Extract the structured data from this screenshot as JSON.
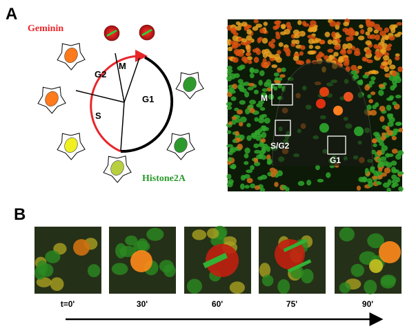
{
  "panel_a": {
    "label": "A",
    "cycle": {
      "geminin": "Geminin",
      "histone": "Histone2A",
      "phases": [
        "G2",
        "M",
        "S",
        "G1"
      ]
    },
    "micrograph_labels": [
      "M",
      "S/G2",
      "G1"
    ]
  },
  "panel_b": {
    "label": "B",
    "times": [
      "t=0'",
      "30'",
      "60'",
      "75'",
      "90'"
    ]
  }
}
